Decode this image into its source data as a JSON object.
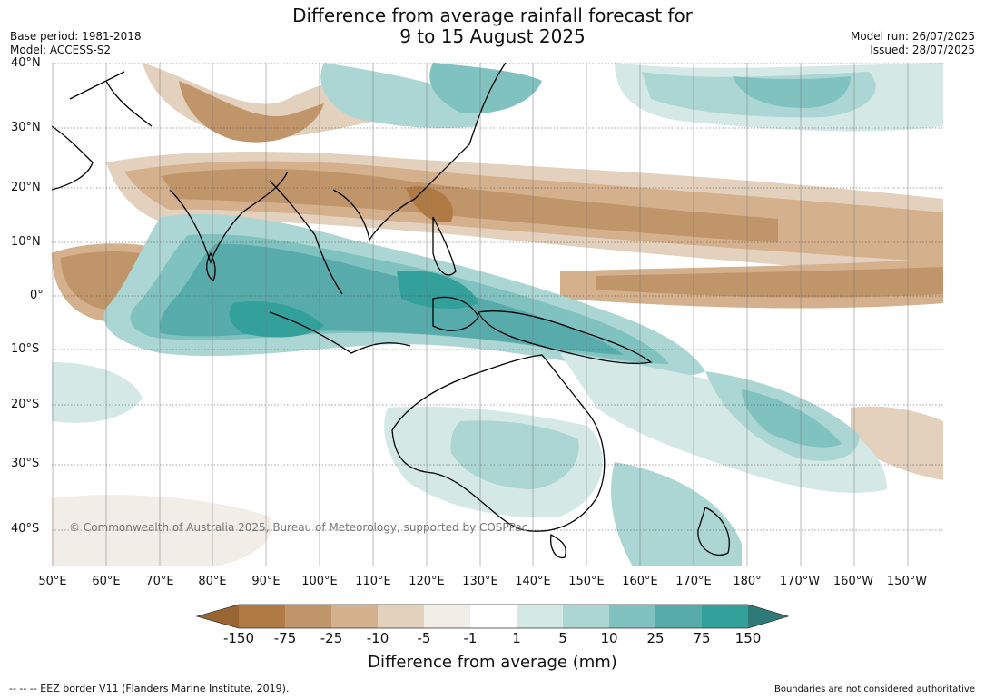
{
  "header": {
    "title_line1": "Difference from average rainfall forecast for",
    "title_line2": "9 to 15 August 2025",
    "base_period": "Base period: 1981-2018",
    "model": "Model: ACCESS-S2",
    "model_run": "Model run: 26/07/2025",
    "issued": "Issued: 28/07/2025"
  },
  "map": {
    "lat_labels": [
      "40°N",
      "30°N",
      "20°N",
      "10°N",
      "0°",
      "10°S",
      "20°S",
      "30°S",
      "40°S"
    ],
    "lon_labels": [
      "50°E",
      "60°E",
      "70°E",
      "80°E",
      "90°E",
      "100°E",
      "110°E",
      "120°E",
      "130°E",
      "140°E",
      "150°E",
      "160°E",
      "170°E",
      "180°",
      "170°W",
      "160°W",
      "150°W"
    ],
    "copyright": "© Commonwealth of Australia 2025, Bureau of Meteorology, supported by COSPPac"
  },
  "legend": {
    "title": "Difference from average (mm)",
    "tick_labels": [
      "-150",
      "-75",
      "-25",
      "-10",
      "-5",
      "-1",
      "1",
      "5",
      "10",
      "25",
      "75",
      "150"
    ],
    "colors": [
      "#996633",
      "#b07a44",
      "#c0956a",
      "#d4b08d",
      "#e3d0bd",
      "#f2ede6",
      "#ffffff",
      "#d4e9e6",
      "#acd6d3",
      "#80c2c0",
      "#57acab",
      "#34a09c",
      "#2e7a78"
    ]
  },
  "footer": {
    "eez_note": "--  --  -- EEZ border V11 (Flanders Marine Institute, 2019).",
    "disclaimer": "Boundaries are not considered authoritative"
  }
}
